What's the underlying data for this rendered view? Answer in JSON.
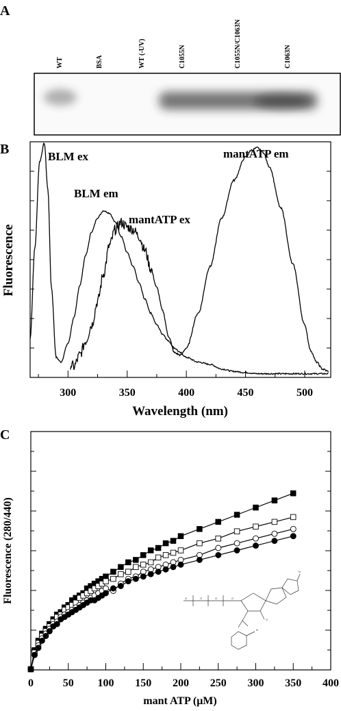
{
  "panels": {
    "a": {
      "label": "A",
      "lanes": [
        "WT",
        "BSA",
        "WT (-UV)",
        "C1055N",
        "C1055N/C1063N",
        "C1063N"
      ]
    },
    "b": {
      "label": "B"
    },
    "c": {
      "label": "C"
    }
  },
  "chart_data": [
    {
      "panel": "B",
      "type": "line",
      "xlabel": "Wavelength (nm)",
      "ylabel": "Fluorescence",
      "xlim": [
        268,
        522
      ],
      "x_ticks": [
        300,
        350,
        400,
        450,
        500
      ],
      "y_tick_labels": "none",
      "grid": false,
      "annotations": [
        "BLM ex",
        "BLM em",
        "mantATP ex",
        "mantATP em"
      ],
      "series": [
        {
          "name": "BLM ex",
          "x": [
            268,
            272,
            276,
            280,
            283,
            286,
            290,
            294,
            300,
            305,
            310,
            315,
            320,
            325,
            330,
            335,
            340,
            345,
            350,
            355,
            360,
            365,
            370,
            375,
            380,
            385,
            390,
            395,
            400,
            410,
            420,
            430,
            440,
            450,
            460,
            470,
            480,
            490,
            500,
            510,
            520
          ],
          "y": [
            0.16,
            0.55,
            0.92,
            1.0,
            0.8,
            0.38,
            0.08,
            0.06,
            0.14,
            0.25,
            0.39,
            0.52,
            0.62,
            0.68,
            0.71,
            0.7,
            0.66,
            0.6,
            0.53,
            0.47,
            0.4,
            0.33,
            0.27,
            0.22,
            0.18,
            0.15,
            0.12,
            0.1,
            0.08,
            0.06,
            0.05,
            0.03,
            0.02,
            0.015,
            0.01,
            0.01,
            0.01,
            0.01,
            0.01,
            0.01,
            0.01
          ]
        },
        {
          "name": "mantATP",
          "x": [
            302,
            305,
            310,
            315,
            320,
            325,
            330,
            335,
            340,
            345,
            350,
            355,
            360,
            365,
            370,
            375,
            380,
            385,
            390,
            395,
            400,
            410,
            420,
            430,
            440,
            450,
            455,
            460,
            465,
            470,
            480,
            490,
            500,
            505,
            510,
            515,
            520
          ],
          "y": [
            0.05,
            0.04,
            0.09,
            0.15,
            0.22,
            0.32,
            0.44,
            0.56,
            0.63,
            0.66,
            0.64,
            0.63,
            0.6,
            0.54,
            0.46,
            0.38,
            0.28,
            0.17,
            0.1,
            0.09,
            0.12,
            0.27,
            0.47,
            0.68,
            0.84,
            0.94,
            0.97,
            0.98,
            0.96,
            0.9,
            0.72,
            0.48,
            0.22,
            0.11,
            0.06,
            0.03,
            0.02
          ]
        }
      ]
    },
    {
      "panel": "C",
      "type": "scatter",
      "xlabel": "mant ATP (μM)",
      "ylabel": "Fluorescence (280/440)",
      "xlim": [
        0,
        400
      ],
      "x_ticks": [
        0,
        50,
        100,
        150,
        200,
        250,
        300,
        350,
        400
      ],
      "y_tick_labels": "none",
      "ylim": [
        0,
        1
      ],
      "series": [
        {
          "name": "filled squares",
          "marker": "square",
          "filled": true,
          "x": [
            0,
            5,
            10,
            15,
            20,
            25,
            30,
            35,
            40,
            45,
            50,
            55,
            60,
            65,
            70,
            75,
            80,
            85,
            90,
            95,
            100,
            110,
            120,
            130,
            140,
            150,
            160,
            170,
            180,
            190,
            200,
            225,
            250,
            275,
            300,
            325,
            350
          ],
          "y": [
            0.0,
            0.08,
            0.12,
            0.15,
            0.17,
            0.19,
            0.21,
            0.23,
            0.24,
            0.26,
            0.27,
            0.29,
            0.3,
            0.31,
            0.32,
            0.34,
            0.35,
            0.36,
            0.37,
            0.38,
            0.39,
            0.41,
            0.43,
            0.45,
            0.46,
            0.48,
            0.5,
            0.51,
            0.53,
            0.54,
            0.56,
            0.59,
            0.62,
            0.65,
            0.68,
            0.71,
            0.74
          ]
        },
        {
          "name": "open squares",
          "marker": "square",
          "filled": false,
          "x": [
            0,
            5,
            10,
            15,
            20,
            25,
            30,
            35,
            40,
            45,
            50,
            55,
            60,
            65,
            70,
            75,
            80,
            85,
            90,
            95,
            100,
            110,
            120,
            130,
            140,
            150,
            160,
            170,
            180,
            190,
            200,
            225,
            250,
            275,
            300,
            325,
            350
          ],
          "y": [
            0.0,
            0.07,
            0.11,
            0.14,
            0.16,
            0.18,
            0.2,
            0.22,
            0.23,
            0.25,
            0.26,
            0.27,
            0.28,
            0.3,
            0.31,
            0.32,
            0.33,
            0.34,
            0.35,
            0.36,
            0.37,
            0.38,
            0.4,
            0.41,
            0.43,
            0.44,
            0.45,
            0.47,
            0.48,
            0.49,
            0.5,
            0.53,
            0.55,
            0.58,
            0.6,
            0.62,
            0.64
          ]
        },
        {
          "name": "open circles",
          "marker": "circle",
          "filled": false,
          "x": [
            0,
            5,
            10,
            15,
            20,
            25,
            30,
            35,
            40,
            45,
            50,
            55,
            60,
            65,
            70,
            75,
            80,
            85,
            90,
            95,
            100,
            110,
            120,
            130,
            140,
            150,
            160,
            170,
            180,
            190,
            200,
            225,
            250,
            275,
            300,
            325,
            350
          ],
          "y": [
            0.0,
            0.06,
            0.1,
            0.13,
            0.15,
            0.17,
            0.19,
            0.2,
            0.22,
            0.23,
            0.24,
            0.25,
            0.26,
            0.27,
            0.28,
            0.29,
            0.3,
            0.31,
            0.32,
            0.33,
            0.34,
            0.33,
            0.36,
            0.38,
            0.39,
            0.41,
            0.42,
            0.43,
            0.44,
            0.45,
            0.46,
            0.48,
            0.51,
            0.53,
            0.55,
            0.57,
            0.59
          ]
        },
        {
          "name": "filled circles",
          "marker": "circle",
          "filled": true,
          "x": [
            0,
            5,
            10,
            15,
            20,
            25,
            30,
            35,
            40,
            45,
            50,
            55,
            60,
            65,
            70,
            75,
            80,
            85,
            90,
            95,
            100,
            110,
            120,
            130,
            140,
            150,
            160,
            170,
            180,
            190,
            200,
            225,
            250,
            275,
            300,
            325,
            350
          ],
          "y": [
            0.0,
            0.06,
            0.09,
            0.12,
            0.14,
            0.16,
            0.18,
            0.19,
            0.21,
            0.22,
            0.23,
            0.24,
            0.25,
            0.26,
            0.27,
            0.28,
            0.29,
            0.29,
            0.3,
            0.31,
            0.32,
            0.34,
            0.35,
            0.37,
            0.38,
            0.39,
            0.4,
            0.41,
            0.42,
            0.43,
            0.44,
            0.46,
            0.48,
            0.5,
            0.52,
            0.54,
            0.56
          ]
        }
      ]
    }
  ]
}
